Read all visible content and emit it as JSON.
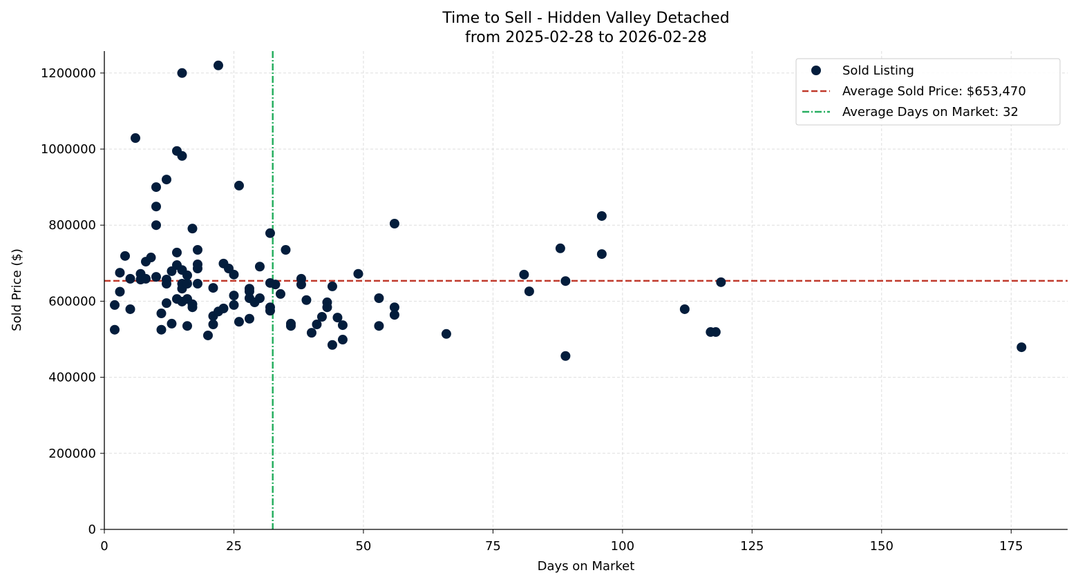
{
  "chart_data": {
    "type": "scatter",
    "title": "Time to Sell - Hidden Valley Detached",
    "subtitle": "from 2025-02-28 to 2026-02-28",
    "xlabel": "Days on Market",
    "ylabel": "Sold Price ($)",
    "xlim": [
      0,
      185.9
    ],
    "ylim": [
      0,
      1257700
    ],
    "xticks": [
      0,
      25,
      50,
      75,
      100,
      125,
      150,
      175
    ],
    "yticks": [
      0,
      200000,
      400000,
      600000,
      800000,
      1000000,
      1200000
    ],
    "grid": true,
    "legend_position": "top-right",
    "colors": {
      "points": "#031d3c",
      "avg_price": "#c0392b",
      "avg_days": "#27ae60"
    },
    "legend": [
      "Sold Listing",
      "Average Sold Price: $653,470",
      "Average Days on Market: 32"
    ],
    "avg_price": 653470,
    "avg_days": 32.5,
    "points": [
      [
        2,
        590000
      ],
      [
        2,
        525000
      ],
      [
        3,
        675000
      ],
      [
        3,
        625000
      ],
      [
        4,
        719000
      ],
      [
        5,
        659000
      ],
      [
        5,
        579000
      ],
      [
        6,
        1029000
      ],
      [
        7,
        672000
      ],
      [
        7,
        657000
      ],
      [
        8,
        704000
      ],
      [
        8,
        659000
      ],
      [
        9,
        715000
      ],
      [
        10,
        664000
      ],
      [
        10,
        900000
      ],
      [
        10,
        849000
      ],
      [
        10,
        800000
      ],
      [
        11,
        568000
      ],
      [
        11,
        525000
      ],
      [
        12,
        920000
      ],
      [
        12,
        657000
      ],
      [
        12,
        646000
      ],
      [
        12,
        595000
      ],
      [
        13,
        679000
      ],
      [
        13,
        541000
      ],
      [
        14,
        995000
      ],
      [
        14,
        728000
      ],
      [
        14,
        695000
      ],
      [
        14,
        606000
      ],
      [
        15,
        1200000
      ],
      [
        15,
        982000
      ],
      [
        15,
        682000
      ],
      [
        15,
        646000
      ],
      [
        15,
        633000
      ],
      [
        15,
        599000
      ],
      [
        16,
        668000
      ],
      [
        16,
        646000
      ],
      [
        16,
        606000
      ],
      [
        16,
        535000
      ],
      [
        17,
        791000
      ],
      [
        17,
        592000
      ],
      [
        17,
        584000
      ],
      [
        18,
        735000
      ],
      [
        18,
        697000
      ],
      [
        18,
        686000
      ],
      [
        18,
        646000
      ],
      [
        20,
        510000
      ],
      [
        21,
        635000
      ],
      [
        21,
        561000
      ],
      [
        21,
        539000
      ],
      [
        22,
        1220000
      ],
      [
        22,
        573000
      ],
      [
        23,
        699000
      ],
      [
        23,
        581000
      ],
      [
        24,
        686000
      ],
      [
        25,
        670000
      ],
      [
        25,
        615000
      ],
      [
        25,
        590000
      ],
      [
        26,
        904000
      ],
      [
        26,
        546000
      ],
      [
        28,
        633000
      ],
      [
        28,
        626000
      ],
      [
        28,
        608000
      ],
      [
        28,
        554000
      ],
      [
        29,
        597000
      ],
      [
        30,
        691000
      ],
      [
        30,
        608000
      ],
      [
        32,
        779000
      ],
      [
        32,
        648000
      ],
      [
        32,
        584000
      ],
      [
        32,
        575000
      ],
      [
        33,
        644000
      ],
      [
        34,
        619000
      ],
      [
        35,
        735000
      ],
      [
        36,
        541000
      ],
      [
        36,
        535000
      ],
      [
        38,
        659000
      ],
      [
        38,
        644000
      ],
      [
        39,
        603000
      ],
      [
        40,
        517000
      ],
      [
        41,
        539000
      ],
      [
        42,
        559000
      ],
      [
        43,
        597000
      ],
      [
        43,
        584000
      ],
      [
        44,
        639000
      ],
      [
        44,
        485000
      ],
      [
        45,
        557000
      ],
      [
        46,
        537000
      ],
      [
        46,
        499000
      ],
      [
        49,
        672000
      ],
      [
        53,
        608000
      ],
      [
        53,
        535000
      ],
      [
        56,
        804000
      ],
      [
        56,
        584000
      ],
      [
        56,
        564000
      ],
      [
        66,
        514000
      ],
      [
        81,
        670000
      ],
      [
        82,
        626000
      ],
      [
        88,
        739000
      ],
      [
        89,
        653000
      ],
      [
        89,
        456000
      ],
      [
        96,
        824000
      ],
      [
        96,
        724000
      ],
      [
        112,
        579000
      ],
      [
        117,
        519000
      ],
      [
        118,
        519000
      ],
      [
        119,
        650000
      ],
      [
        177,
        479000
      ]
    ]
  }
}
